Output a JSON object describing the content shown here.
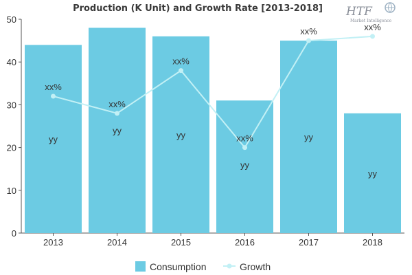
{
  "chart_data": {
    "type": "bar",
    "title": "Production (K Unit) and Growth Rate [2013-2018]",
    "categories": [
      "2013",
      "2014",
      "2015",
      "2016",
      "2017",
      "2018"
    ],
    "ylim": [
      0,
      50
    ],
    "yticks": [
      0,
      10,
      20,
      30,
      40,
      50
    ],
    "grid": false,
    "legend_position": "bottom",
    "series": [
      {
        "name": "Consumption",
        "kind": "bar",
        "color": "#6ccbe3",
        "values": [
          44,
          48,
          46,
          31,
          45,
          28
        ],
        "data_label": "yy",
        "label_values": [
          22,
          24,
          23,
          16,
          22.5,
          14
        ]
      },
      {
        "name": "Growth",
        "kind": "line",
        "color": "#c2f0f5",
        "values": [
          32,
          28,
          38,
          20,
          45,
          46
        ],
        "data_label": "xx%"
      }
    ]
  },
  "logo": {
    "text": "HTF",
    "subtitle": "Market Intelligence"
  }
}
